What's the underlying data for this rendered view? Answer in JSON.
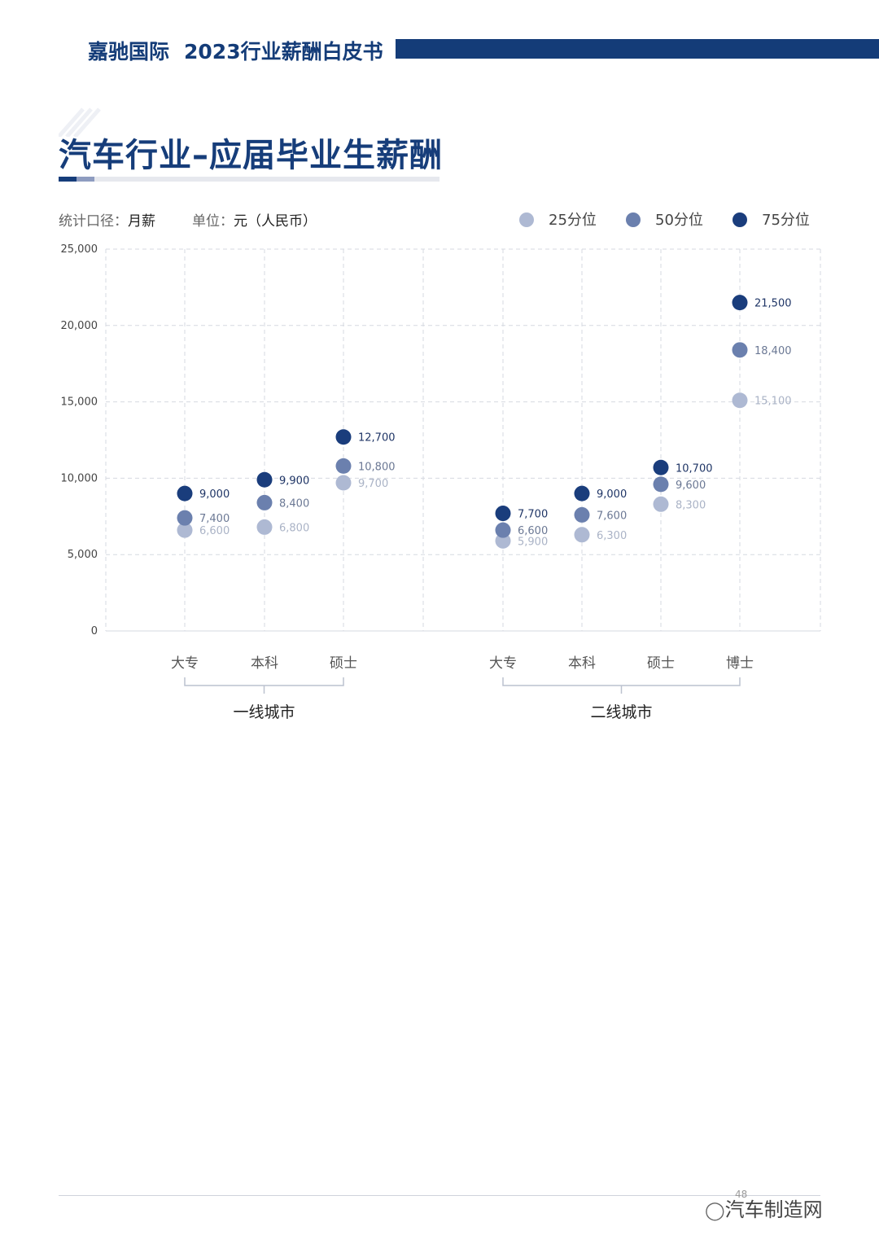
{
  "header": {
    "brand": "嘉驰国际",
    "doc_title": "2023行业薪酬白皮书"
  },
  "page_title": "汽车行业–应届毕业生薪酬",
  "meta": {
    "basis_label": "统计口径：",
    "basis_value": "月薪",
    "unit_label": "单位：",
    "unit_value": "元（人民币）"
  },
  "colors": {
    "p25": "#aeb9d3",
    "p50": "#6b80ae",
    "p75": "#1a3d7c",
    "brand": "#143c78"
  },
  "chart_data": {
    "type": "scatter",
    "ylim": [
      0,
      25000
    ],
    "yticks": [
      "0",
      "5,000",
      "10,000",
      "15,000",
      "20,000",
      "25,000"
    ],
    "ytick_values": [
      0,
      5000,
      10000,
      15000,
      20000,
      25000
    ],
    "legend": [
      "25分位",
      "50分位",
      "75分位"
    ],
    "groups": [
      {
        "name": "一线城市",
        "categories": [
          "大专",
          "本科",
          "硕士"
        ]
      },
      {
        "name": "二线城市",
        "categories": [
          "大专",
          "本科",
          "硕士",
          "博士"
        ]
      }
    ],
    "series": [
      {
        "name": "25分位",
        "values": [
          6600,
          6800,
          9700,
          5900,
          6300,
          8300,
          15100
        ],
        "labels": [
          "6,600",
          "6,800",
          "9,700",
          "5,900",
          "6,300",
          "8,300",
          "15,100"
        ]
      },
      {
        "name": "50分位",
        "values": [
          7400,
          8400,
          10800,
          6600,
          7600,
          9600,
          18400
        ],
        "labels": [
          "7,400",
          "8,400",
          "10,800",
          "6,600",
          "7,600",
          "9,600",
          "18,400"
        ]
      },
      {
        "name": "75分位",
        "values": [
          9000,
          9900,
          12700,
          7700,
          9000,
          10700,
          21500
        ],
        "labels": [
          "9,000",
          "9,900",
          "12,700",
          "7,700",
          "9,000",
          "10,700",
          "21,500"
        ]
      }
    ]
  },
  "footer": {
    "page_number": "48",
    "watermark": "汽车制造网"
  }
}
